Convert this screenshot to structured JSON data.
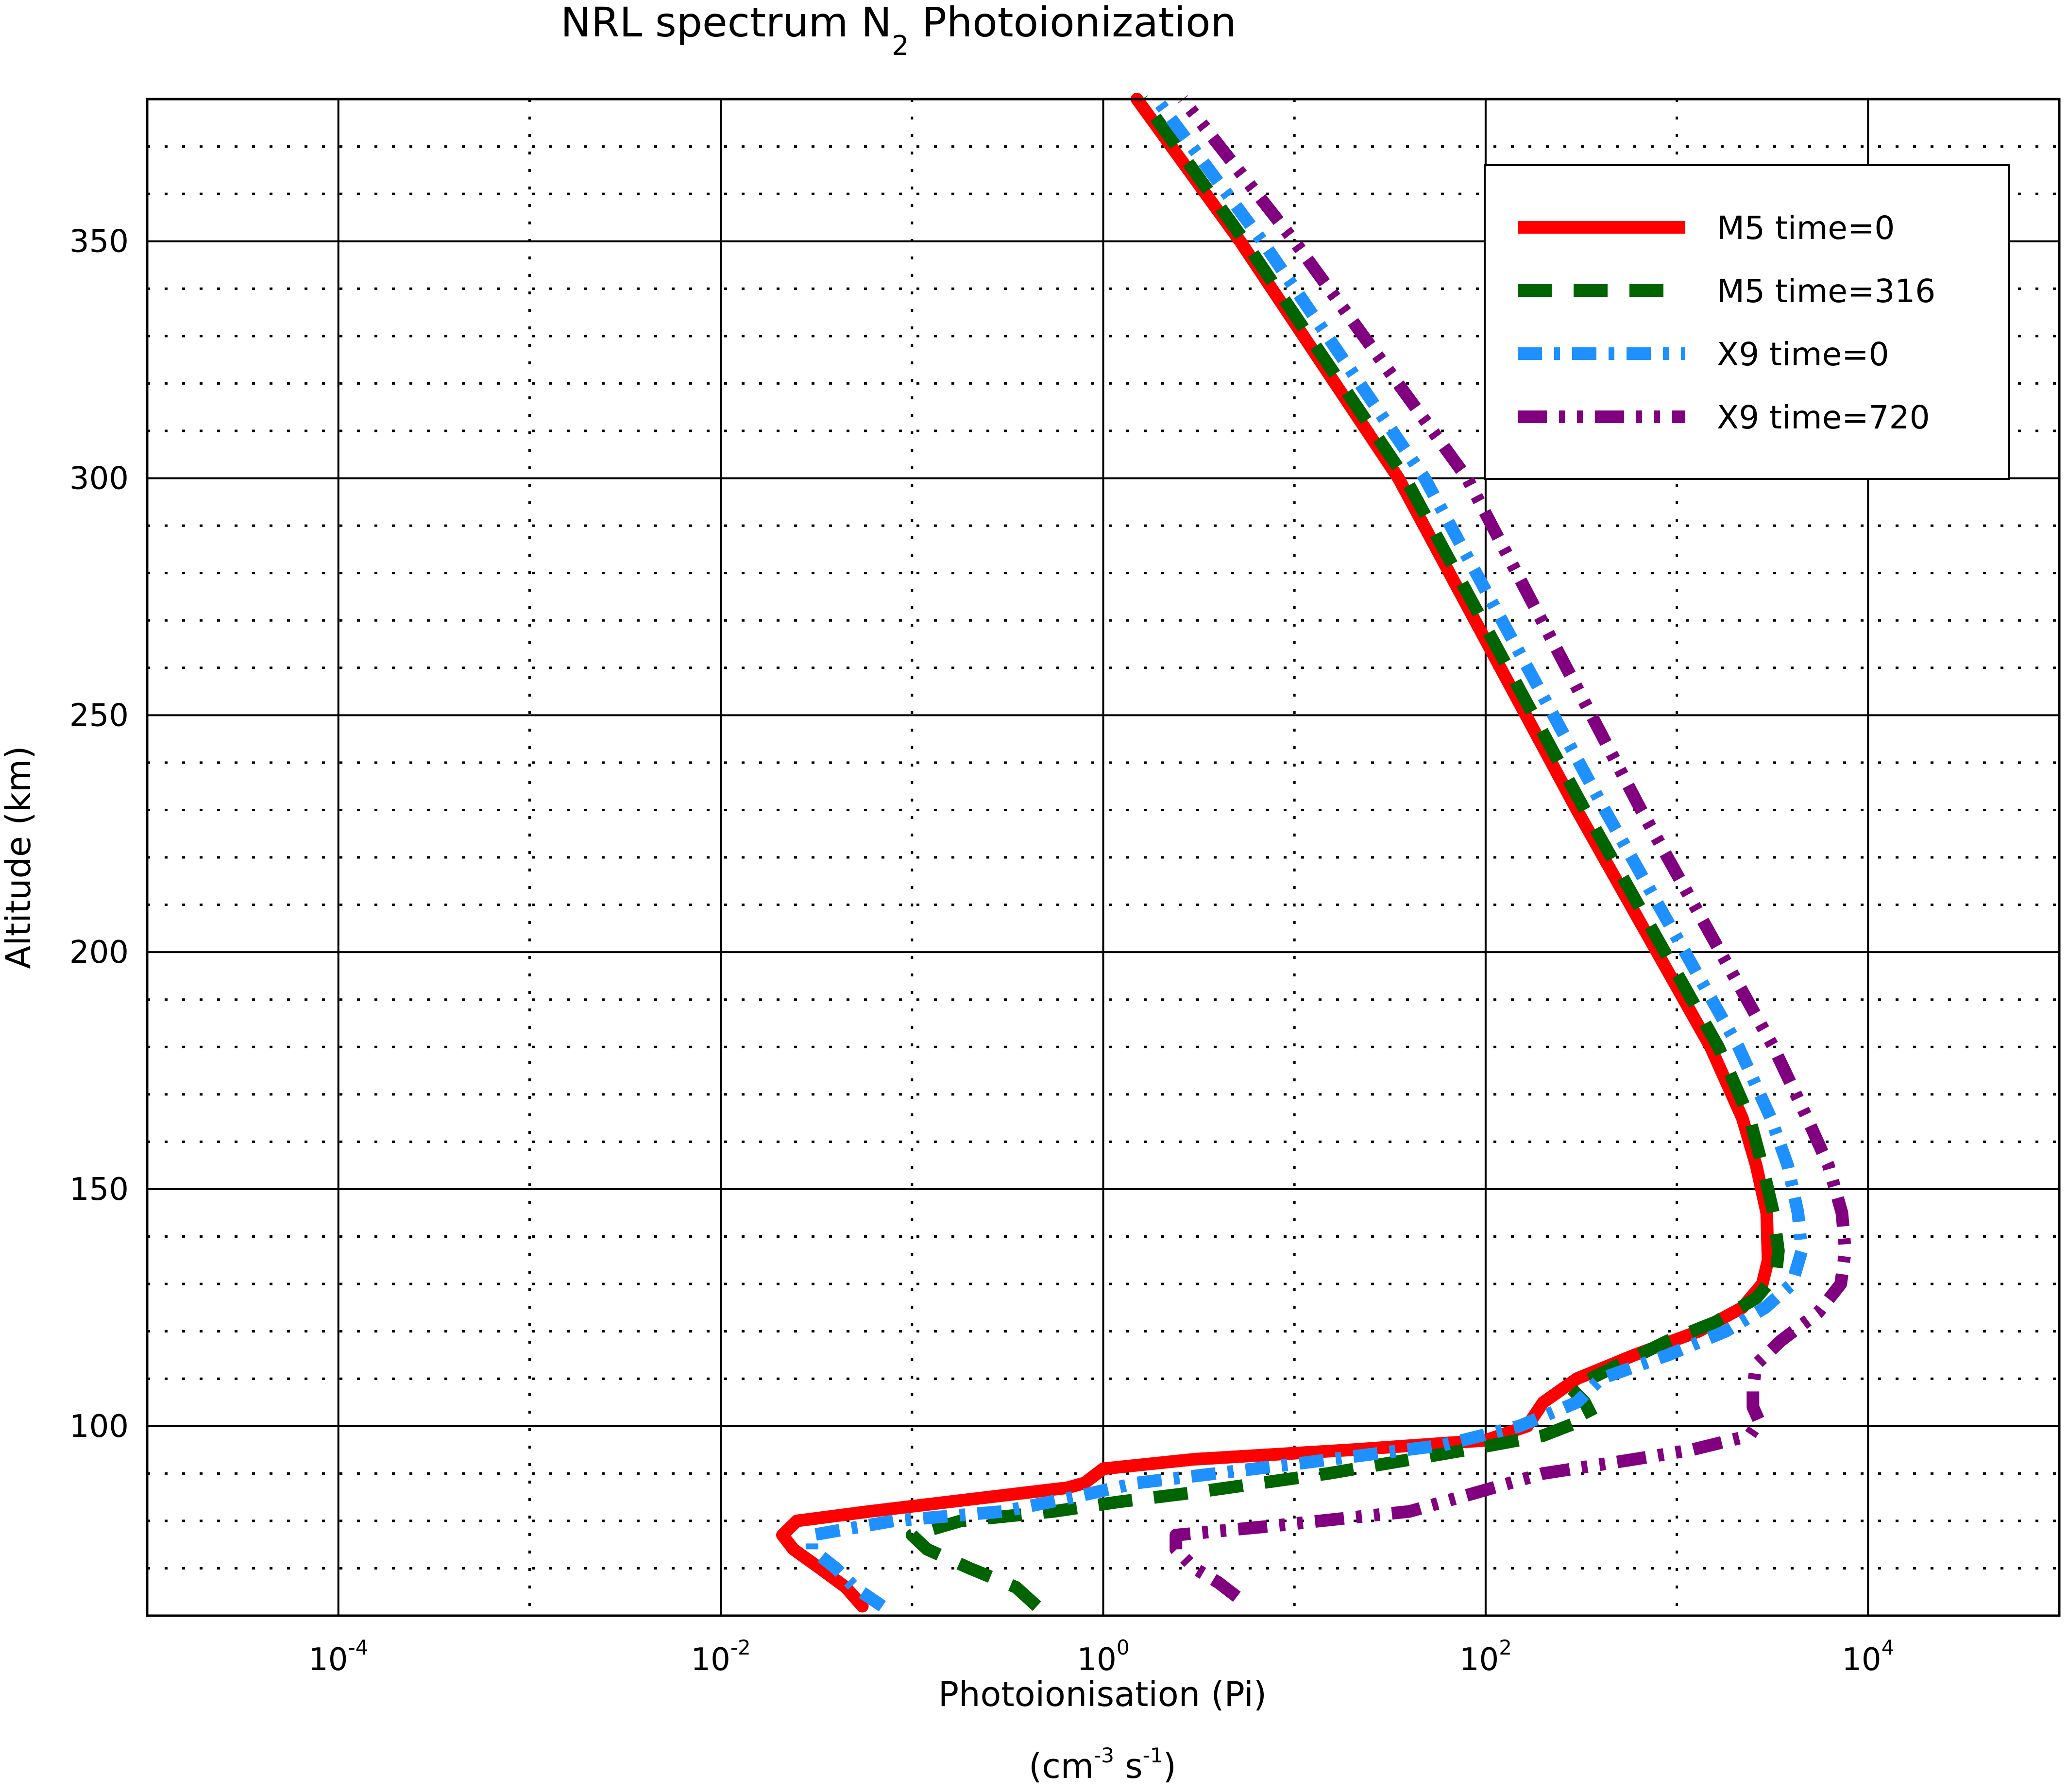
{
  "chart_data": {
    "type": "line",
    "title": "NRL spectrum N",
    "title_subscript": "2",
    "title_suffix": " Photoionization",
    "xlabel": "Photoionisation (Pi)",
    "xlabel_units": {
      "base1": "(cm",
      "sup1": "-3",
      "base2": " s",
      "sup2": "-1",
      "close": ")"
    },
    "ylabel": "Altitude (km)",
    "x_scale": "log",
    "xlim": [
      1e-05,
      100000
    ],
    "ylim": [
      60,
      380
    ],
    "x_ticks": [
      {
        "value": 0.0001,
        "base": "10",
        "exp": "-4"
      },
      {
        "value": 0.01,
        "base": "10",
        "exp": "-2"
      },
      {
        "value": 1,
        "base": "10",
        "exp": "0"
      },
      {
        "value": 100,
        "base": "10",
        "exp": "2"
      },
      {
        "value": 10000,
        "base": "10",
        "exp": "4"
      }
    ],
    "x_gridlines_major": [
      0.0001,
      0.01,
      1,
      100,
      10000
    ],
    "x_gridlines_minor": [
      0.001,
      0.1,
      10,
      1000
    ],
    "y_ticks": [
      {
        "value": 100,
        "label": "100"
      },
      {
        "value": 150,
        "label": "150"
      },
      {
        "value": 200,
        "label": "200"
      },
      {
        "value": 250,
        "label": "250"
      },
      {
        "value": 300,
        "label": "300"
      },
      {
        "value": 350,
        "label": "350"
      }
    ],
    "y_gridlines_major": [
      100,
      150,
      200,
      250,
      300,
      350
    ],
    "y_gridlines_minor": [
      70,
      80,
      90,
      110,
      120,
      130,
      140,
      160,
      170,
      180,
      190,
      210,
      220,
      230,
      240,
      260,
      270,
      280,
      290,
      310,
      320,
      330,
      340,
      360,
      370
    ],
    "grid": true,
    "legend_position": "top-right",
    "series": [
      {
        "name": "M5 time=0",
        "color": "#ff0000",
        "style": "solid",
        "x": [
          0.055,
          0.045,
          0.033,
          0.024,
          0.021,
          0.025,
          0.06,
          0.25,
          0.65,
          0.8,
          1.0,
          3,
          20,
          100,
          165,
          200,
          300,
          600,
          1300,
          2200,
          2800,
          3000,
          2950,
          2600,
          2200,
          1500,
          300,
          35,
          5.2,
          1.5
        ],
        "y": [
          62,
          66,
          70,
          74,
          77,
          80,
          82,
          85,
          87,
          88,
          91,
          93,
          95,
          97,
          100,
          105,
          110,
          115,
          120,
          125,
          130,
          135,
          145,
          155,
          165,
          180,
          230,
          300,
          350,
          380
        ]
      },
      {
        "name": "M5 time=316",
        "color": "#006400",
        "style": "dashed",
        "x": [
          0.45,
          0.35,
          0.2,
          0.12,
          0.1,
          0.18,
          0.55,
          1.2,
          3,
          15,
          80,
          200,
          360,
          330,
          280,
          500,
          900,
          1600,
          2600,
          3300,
          3400,
          3200,
          2800,
          2400,
          1650,
          330,
          38,
          5.5,
          1.6
        ],
        "y": [
          62,
          66,
          70,
          74,
          77,
          80,
          82,
          84,
          86,
          90,
          95,
          98,
          102,
          105,
          108,
          113,
          118,
          122,
          127,
          132,
          137,
          145,
          155,
          165,
          180,
          230,
          300,
          350,
          380
        ]
      },
      {
        "name": "X9 time=0",
        "color": "#1e90ff",
        "style": "dashdot",
        "x": [
          0.07,
          0.05,
          0.04,
          0.03,
          0.03,
          0.08,
          0.3,
          0.7,
          1.5,
          10,
          60,
          150,
          300,
          400,
          900,
          1800,
          2900,
          4000,
          4500,
          4300,
          3800,
          3100,
          2100,
          420,
          48,
          6.8,
          1.9
        ],
        "y": [
          62,
          66,
          70,
          74,
          77,
          80,
          82,
          85,
          88,
          92,
          96,
          100,
          105,
          110,
          115,
          120,
          125,
          130,
          137,
          145,
          155,
          165,
          180,
          230,
          300,
          350,
          380
        ]
      },
      {
        "name": "X9 time=720",
        "color": "#800080",
        "style": "dashdotdot",
        "x": [
          5,
          4,
          3,
          2.4,
          2.4,
          8,
          40,
          90,
          200,
          600,
          1200,
          2400,
          2700,
          2500,
          2500,
          2600,
          3500,
          5500,
          7200,
          7600,
          7300,
          6200,
          4800,
          3200,
          650,
          80,
          10,
          2.6
        ],
        "y": [
          64,
          67,
          70,
          74,
          77,
          79,
          82,
          86,
          90,
          93,
          95,
          98,
          101,
          104,
          108,
          113,
          118,
          124,
          130,
          137,
          145,
          155,
          165,
          180,
          230,
          300,
          350,
          380
        ]
      }
    ]
  }
}
